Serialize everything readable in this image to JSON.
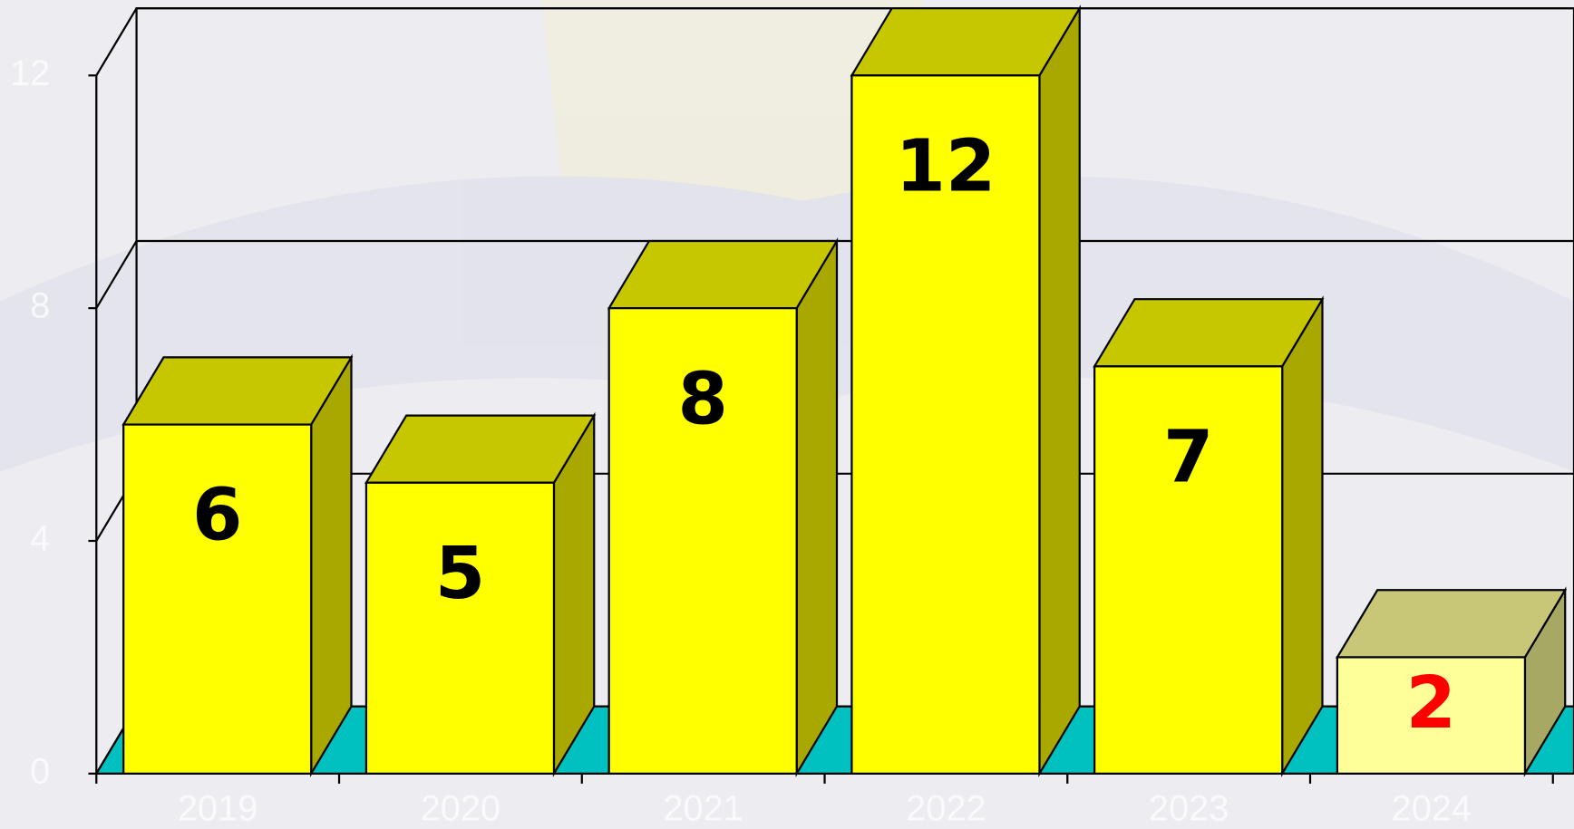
{
  "chart_data": {
    "type": "bar3d",
    "categories": [
      "2019",
      "2020",
      "2021",
      "2022",
      "2023",
      "2024"
    ],
    "values": [
      6,
      5,
      8,
      12,
      7,
      2
    ],
    "point_colors": [
      "#ffff00",
      "#ffff00",
      "#ffff00",
      "#ffff00",
      "#ffff00",
      "#ffff99"
    ],
    "value_label_colors": [
      "#000000",
      "#000000",
      "#000000",
      "#000000",
      "#000000",
      "#ff0000"
    ],
    "floor_color": "#00c0c0",
    "ylim": [
      0,
      12
    ],
    "yticks": [
      0,
      4,
      8,
      12
    ],
    "grid": true
  }
}
